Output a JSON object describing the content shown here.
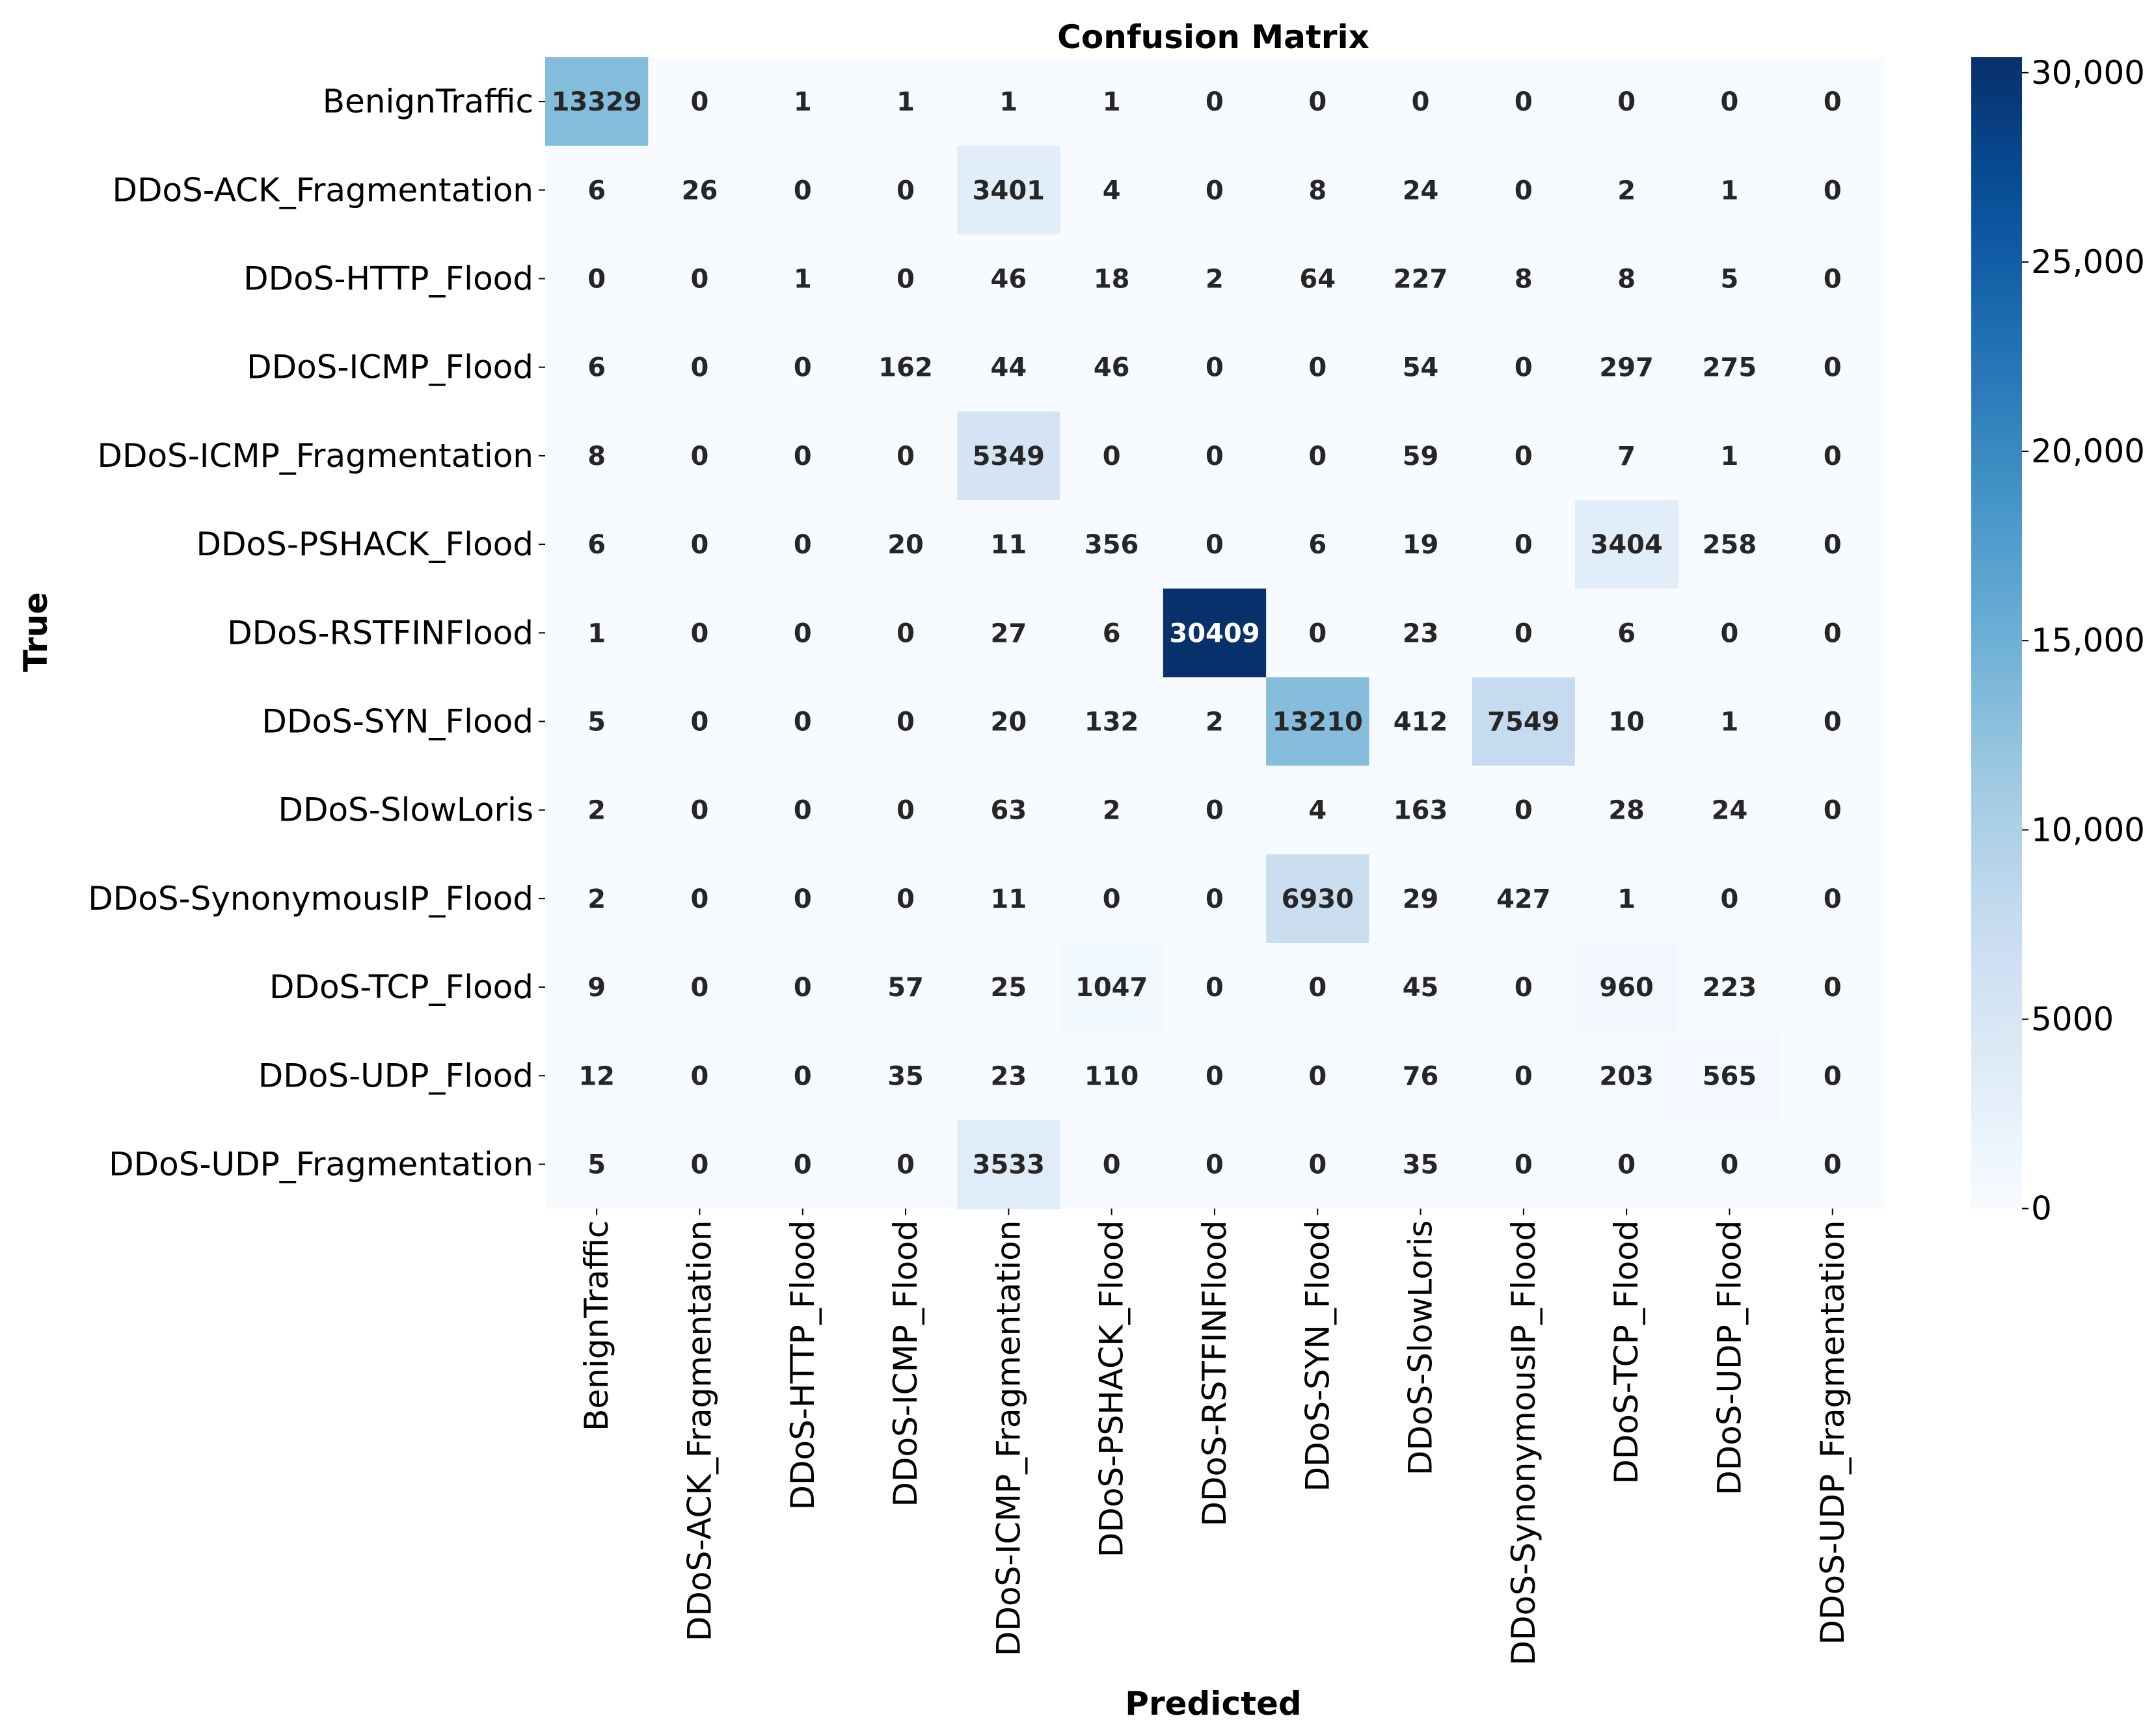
{
  "chart_data": {
    "type": "heatmap",
    "title": "Confusion Matrix",
    "xlabel": "Predicted",
    "ylabel": "True",
    "labels": [
      "BenignTraffic",
      "DDoS-ACK_Fragmentation",
      "DDoS-HTTP_Flood",
      "DDoS-ICMP_Flood",
      "DDoS-ICMP_Fragmentation",
      "DDoS-PSHACK_Flood",
      "DDoS-RSTFINFlood",
      "DDoS-SYN_Flood",
      "DDoS-SlowLoris",
      "DDoS-SynonymousIP_Flood",
      "DDoS-TCP_Flood",
      "DDoS-UDP_Flood",
      "DDoS-UDP_Fragmentation"
    ],
    "matrix": [
      [
        13329,
        0,
        1,
        1,
        1,
        1,
        0,
        0,
        0,
        0,
        0,
        0,
        0
      ],
      [
        6,
        26,
        0,
        0,
        3401,
        4,
        0,
        8,
        24,
        0,
        2,
        1,
        0
      ],
      [
        0,
        0,
        1,
        0,
        46,
        18,
        2,
        64,
        227,
        8,
        8,
        5,
        0
      ],
      [
        6,
        0,
        0,
        162,
        44,
        46,
        0,
        0,
        54,
        0,
        297,
        275,
        0
      ],
      [
        8,
        0,
        0,
        0,
        5349,
        0,
        0,
        0,
        59,
        0,
        7,
        1,
        0
      ],
      [
        6,
        0,
        0,
        20,
        11,
        356,
        0,
        6,
        19,
        0,
        3404,
        258,
        0
      ],
      [
        1,
        0,
        0,
        0,
        27,
        6,
        30409,
        0,
        23,
        0,
        6,
        0,
        0
      ],
      [
        5,
        0,
        0,
        0,
        20,
        132,
        2,
        13210,
        412,
        7549,
        10,
        1,
        0
      ],
      [
        2,
        0,
        0,
        0,
        63,
        2,
        0,
        4,
        163,
        0,
        28,
        24,
        0
      ],
      [
        2,
        0,
        0,
        0,
        11,
        0,
        0,
        6930,
        29,
        427,
        1,
        0,
        0
      ],
      [
        9,
        0,
        0,
        57,
        25,
        1047,
        0,
        0,
        45,
        0,
        960,
        223,
        0
      ],
      [
        12,
        0,
        0,
        35,
        23,
        110,
        0,
        0,
        76,
        0,
        203,
        565,
        0
      ],
      [
        5,
        0,
        0,
        0,
        3533,
        0,
        0,
        0,
        35,
        0,
        0,
        0,
        0
      ]
    ],
    "colorbar": {
      "colormap": "Blues",
      "vmin": 0,
      "vmax": 30409,
      "ticks": [
        0,
        5000,
        10000,
        15000,
        20000,
        25000,
        30000
      ],
      "tick_labels": [
        "0",
        "5000",
        "10,000",
        "15,000",
        "20,000",
        "25,000",
        "30,000"
      ]
    },
    "cell_text_colors": {
      "light": "#ffffff",
      "dark": "#262626"
    }
  }
}
